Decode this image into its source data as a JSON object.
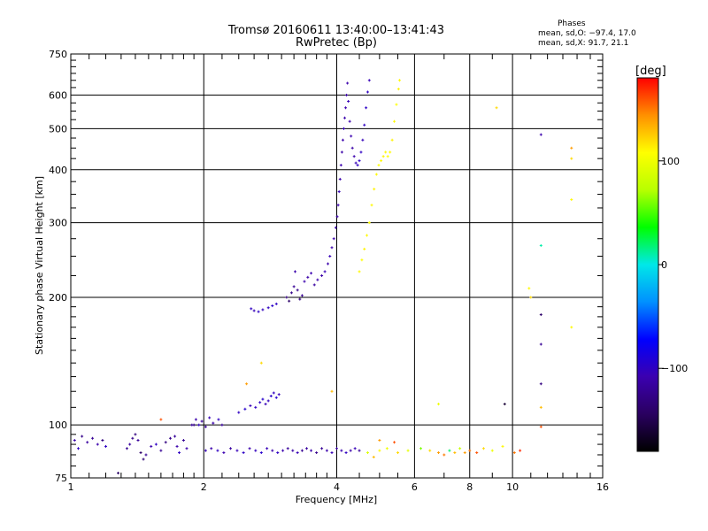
{
  "header": {
    "title_line1": "Tromsø 20160611 13:40:00–13:41:43",
    "title_line2": "RwPretec (Bp)"
  },
  "phase_info": {
    "title": "Phases",
    "line_o": "mean, sd,O: −97.4, 17.0",
    "line_x": "mean, sd,X:  91.7, 21.1"
  },
  "colorbar": {
    "label": "[deg]",
    "ticks": [
      "100",
      "0",
      "−100"
    ],
    "tick_values": [
      100,
      0,
      -100
    ],
    "range": [
      -180,
      180
    ],
    "colors": [
      "#000000",
      "#2a0060",
      "#3b00b0",
      "#0000ff",
      "#0090ff",
      "#00e8e8",
      "#00ff00",
      "#b8ff00",
      "#ffff00",
      "#ff9000",
      "#ff0000"
    ]
  },
  "chart_data": {
    "type": "scatter",
    "title": "Tromsø 20160611 13:40:00–13:41:43",
    "subtitle": "RwPretec (Bp)",
    "xlabel": "Frequency [MHz]",
    "ylabel": "Stationary phase Virtual Height [km]",
    "x_scale": "log",
    "y_scale": "log",
    "xlim": [
      1,
      16
    ],
    "ylim": [
      75,
      750
    ],
    "x_ticks": [
      1,
      2,
      4,
      6,
      8,
      10,
      16
    ],
    "x_tick_labels": [
      "1",
      "2",
      "4",
      "6",
      "8",
      "10",
      "16"
    ],
    "y_ticks": [
      75,
      100,
      200,
      300,
      400,
      500,
      600,
      750
    ],
    "y_tick_labels": [
      "75",
      "100",
      "200",
      "300",
      "400",
      "500",
      "600",
      "750"
    ],
    "x_minor_ticks": [
      1.1,
      1.2,
      1.3,
      1.4,
      1.5,
      1.6,
      1.7,
      1.8,
      1.9,
      2.2,
      2.4,
      2.6,
      2.8,
      3,
      3.2,
      3.4,
      3.6,
      3.8,
      4.5,
      5,
      5.5,
      7,
      9,
      11,
      12,
      13,
      14,
      15
    ],
    "y_minor_ticks": [
      80,
      85,
      90,
      95,
      110,
      120,
      130,
      140,
      150,
      160,
      170,
      180,
      190,
      225,
      250,
      275,
      325,
      350,
      375,
      425,
      450,
      475,
      525,
      550,
      575,
      625,
      650,
      675,
      700,
      725
    ],
    "grid": true,
    "color_dimension": "phase [deg]",
    "series": [
      {
        "points": [
          [
            1.02,
            92,
            -110
          ],
          [
            1.04,
            88,
            -100
          ],
          [
            1.06,
            94,
            -125
          ],
          [
            1.09,
            91,
            -115
          ],
          [
            1.12,
            93,
            -120
          ],
          [
            1.15,
            90,
            -110
          ],
          [
            1.18,
            92,
            -130
          ],
          [
            1.2,
            89,
            -100
          ],
          [
            1.28,
            77,
            -140
          ],
          [
            1.34,
            88,
            -120
          ],
          [
            1.36,
            90,
            -115
          ],
          [
            1.38,
            93,
            -125
          ],
          [
            1.4,
            95,
            -130
          ],
          [
            1.42,
            92,
            -118
          ],
          [
            1.44,
            86,
            -140
          ],
          [
            1.46,
            83,
            -135
          ],
          [
            1.48,
            85,
            -120
          ],
          [
            1.52,
            89,
            -110
          ],
          [
            1.56,
            90,
            -100
          ],
          [
            1.6,
            87,
            -120
          ],
          [
            1.64,
            91,
            -130
          ],
          [
            1.68,
            93,
            -125
          ],
          [
            1.72,
            94,
            -118
          ],
          [
            1.74,
            89,
            -110
          ],
          [
            1.76,
            86,
            -100
          ],
          [
            1.8,
            92,
            -120
          ],
          [
            1.83,
            88,
            -110
          ],
          [
            1.88,
            100,
            -115
          ],
          [
            1.9,
            100,
            -125
          ],
          [
            1.92,
            103,
            -110
          ],
          [
            1.95,
            100,
            -100
          ],
          [
            1.98,
            102,
            -118
          ],
          [
            2.02,
            99,
            -120
          ],
          [
            2.06,
            104,
            -105
          ],
          [
            2.1,
            101,
            -110
          ],
          [
            2.16,
            103,
            -100
          ],
          [
            2.2,
            100,
            -115
          ]
        ]
      },
      {
        "points": [
          [
            2.02,
            87,
            -105
          ],
          [
            2.08,
            88,
            -110
          ],
          [
            2.15,
            87,
            -100
          ],
          [
            2.22,
            86,
            -108
          ],
          [
            2.3,
            88,
            -115
          ],
          [
            2.38,
            87,
            -104
          ],
          [
            2.46,
            86,
            -98
          ],
          [
            2.54,
            88,
            -110
          ],
          [
            2.62,
            87,
            -102
          ],
          [
            2.7,
            86,
            -95
          ],
          [
            2.78,
            88,
            -105
          ],
          [
            2.86,
            87,
            -110
          ],
          [
            2.94,
            86,
            -100
          ],
          [
            3.02,
            87,
            -108
          ],
          [
            3.1,
            88,
            -118
          ],
          [
            3.18,
            87,
            -112
          ],
          [
            3.26,
            86,
            -105
          ],
          [
            3.34,
            87,
            -120
          ],
          [
            3.42,
            88,
            -115
          ],
          [
            3.5,
            87,
            -110
          ],
          [
            3.6,
            86,
            -125
          ],
          [
            3.7,
            88,
            -120
          ],
          [
            3.8,
            87,
            -110
          ],
          [
            3.9,
            86,
            -105
          ],
          [
            4.0,
            88,
            -115
          ],
          [
            4.1,
            87,
            -108
          ],
          [
            4.2,
            86,
            -100
          ],
          [
            4.3,
            87,
            -110
          ],
          [
            4.4,
            88,
            -105
          ],
          [
            4.5,
            87,
            -118
          ]
        ]
      },
      {
        "points": [
          [
            2.4,
            107,
            -100
          ],
          [
            2.48,
            109,
            -95
          ],
          [
            2.55,
            111,
            -105
          ],
          [
            2.62,
            110,
            -100
          ],
          [
            2.68,
            113,
            -98
          ],
          [
            2.72,
            115,
            -95
          ],
          [
            2.76,
            112,
            -105
          ],
          [
            2.8,
            114,
            -102
          ],
          [
            2.84,
            117,
            -96
          ],
          [
            2.88,
            119,
            -100
          ],
          [
            2.92,
            116,
            -94
          ],
          [
            2.96,
            118,
            -104
          ]
        ]
      },
      {
        "points": [
          [
            2.56,
            188,
            -100
          ],
          [
            2.6,
            186,
            -105
          ],
          [
            2.66,
            185,
            -98
          ],
          [
            2.72,
            187,
            -102
          ],
          [
            2.8,
            189,
            -100
          ],
          [
            2.86,
            191,
            -96
          ],
          [
            2.92,
            193,
            -100
          ],
          [
            3.08,
            200,
            -130
          ],
          [
            3.12,
            196,
            -140
          ],
          [
            3.16,
            205,
            -125
          ],
          [
            3.2,
            212,
            -120
          ],
          [
            3.22,
            230,
            -110
          ],
          [
            3.26,
            208,
            -125
          ],
          [
            3.3,
            198,
            -130
          ],
          [
            3.34,
            202,
            -120
          ],
          [
            3.38,
            218,
            -110
          ],
          [
            3.44,
            223,
            -112
          ],
          [
            3.5,
            228,
            -108
          ],
          [
            3.56,
            214,
            -115
          ],
          [
            3.62,
            220,
            -110
          ],
          [
            3.7,
            225,
            -112
          ],
          [
            3.76,
            230,
            -105
          ],
          [
            3.82,
            240,
            -110
          ],
          [
            3.86,
            250,
            -105
          ],
          [
            3.9,
            262,
            -110
          ],
          [
            3.94,
            275,
            -108
          ],
          [
            3.98,
            292,
            -112
          ],
          [
            4.01,
            310,
            -110
          ],
          [
            4.03,
            330,
            -108
          ],
          [
            4.05,
            355,
            -105
          ],
          [
            4.07,
            380,
            -110
          ],
          [
            4.09,
            410,
            -108
          ],
          [
            4.11,
            440,
            -112
          ],
          [
            4.13,
            470,
            -110
          ],
          [
            4.15,
            500,
            -105
          ],
          [
            4.17,
            530,
            -110
          ],
          [
            4.19,
            560,
            -108
          ],
          [
            4.21,
            600,
            -112
          ],
          [
            4.23,
            640,
            -110
          ],
          [
            4.25,
            580,
            -105
          ],
          [
            4.28,
            520,
            -110
          ],
          [
            4.31,
            480,
            -108
          ],
          [
            4.34,
            450,
            -112
          ],
          [
            4.38,
            430,
            -110
          ],
          [
            4.42,
            415,
            -105
          ],
          [
            4.46,
            410,
            -100
          ],
          [
            4.5,
            420,
            -98
          ],
          [
            4.54,
            440,
            -100
          ],
          [
            4.58,
            470,
            -104
          ],
          [
            4.62,
            510,
            -100
          ],
          [
            4.66,
            560,
            -98
          ],
          [
            4.7,
            610,
            -100
          ],
          [
            4.74,
            650,
            -105
          ]
        ]
      },
      {
        "points": [
          [
            4.5,
            230,
            110
          ],
          [
            4.56,
            245,
            108
          ],
          [
            4.62,
            260,
            112
          ],
          [
            4.68,
            280,
            110
          ],
          [
            4.74,
            300,
            108
          ],
          [
            4.8,
            330,
            110
          ],
          [
            4.86,
            360,
            112
          ],
          [
            4.92,
            390,
            110
          ],
          [
            4.98,
            410,
            108
          ],
          [
            5.04,
            420,
            110
          ],
          [
            5.1,
            430,
            112
          ],
          [
            5.16,
            440,
            110
          ],
          [
            5.22,
            430,
            108
          ],
          [
            5.28,
            440,
            110
          ],
          [
            5.34,
            470,
            112
          ],
          [
            5.4,
            520,
            110
          ],
          [
            5.46,
            570,
            108
          ],
          [
            5.52,
            620,
            112
          ],
          [
            5.55,
            650,
            110
          ]
        ]
      },
      {
        "points": [
          [
            4.7,
            86,
            90
          ],
          [
            4.85,
            84,
            130
          ],
          [
            5.0,
            87,
            110
          ],
          [
            5.2,
            88,
            100
          ],
          [
            5.5,
            86,
            120
          ],
          [
            5.8,
            87,
            95
          ],
          [
            6.2,
            88,
            60
          ],
          [
            6.5,
            87,
            120
          ],
          [
            6.8,
            86,
            140
          ],
          [
            7.0,
            85,
            150
          ],
          [
            7.2,
            87,
            20
          ],
          [
            7.4,
            86,
            130
          ],
          [
            7.6,
            88,
            80
          ],
          [
            7.8,
            86,
            140
          ],
          [
            8.0,
            87,
            150
          ],
          [
            8.3,
            86,
            160
          ],
          [
            8.6,
            88,
            120
          ],
          [
            9.0,
            87,
            100
          ],
          [
            9.5,
            89,
            110
          ],
          [
            10.1,
            86,
            150
          ],
          [
            10.4,
            87,
            170
          ]
        ]
      },
      {
        "points": [
          [
            5.0,
            92,
            140
          ],
          [
            5.4,
            91,
            160
          ],
          [
            6.8,
            112,
            100
          ],
          [
            9.2,
            560,
            120
          ],
          [
            9.6,
            112,
            -160
          ],
          [
            10.9,
            210,
            110
          ],
          [
            11.0,
            200,
            120
          ],
          [
            11.6,
            484,
            -110
          ],
          [
            11.6,
            265,
            10
          ],
          [
            11.6,
            182,
            -140
          ],
          [
            11.6,
            155,
            -120
          ],
          [
            11.6,
            125,
            -130
          ],
          [
            11.6,
            110,
            130
          ],
          [
            11.6,
            99,
            160
          ],
          [
            13.6,
            450,
            140
          ],
          [
            13.6,
            425,
            120
          ],
          [
            13.6,
            340,
            110
          ],
          [
            13.6,
            170,
            110
          ],
          [
            2.5,
            125,
            140
          ],
          [
            2.7,
            140,
            120
          ],
          [
            3.9,
            120,
            130
          ],
          [
            1.6,
            103,
            160
          ]
        ]
      }
    ]
  }
}
